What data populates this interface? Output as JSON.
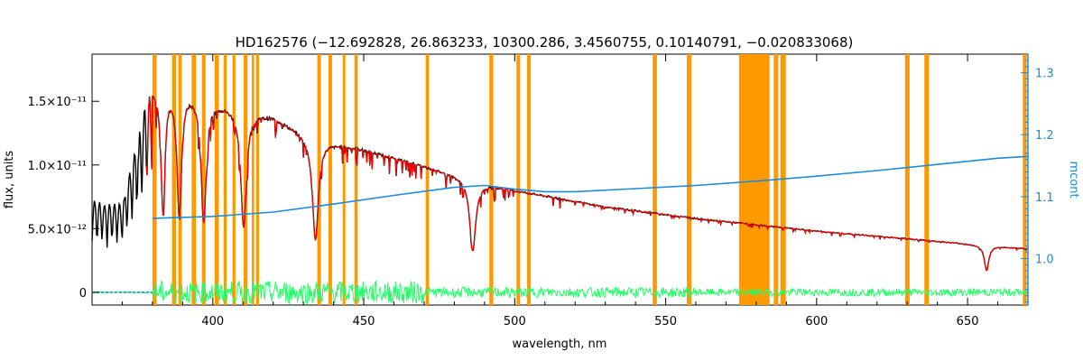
{
  "chart_data": {
    "type": "line",
    "title": "HD162576    (−12.692828, 26.863233, 10300.286, 3.4560755, 0.10140791, −0.020833068)",
    "xlabel": "wavelength, nm",
    "ylabel": "flux, units",
    "y2label": "mcont",
    "xlim": [
      360,
      670
    ],
    "ylim": [
      -1e-12,
      1.87e-11
    ],
    "y2lim": [
      0.925,
      1.33
    ],
    "xticks": [
      400,
      450,
      500,
      550,
      600,
      650
    ],
    "yticks": [
      {
        "value": 0,
        "label": "0"
      },
      {
        "value": 5e-12,
        "label": "5.0×10⁻¹²"
      },
      {
        "value": 1e-11,
        "label": "1.0×10⁻¹¹"
      },
      {
        "value": 1.5e-11,
        "label": "1.5×10⁻¹¹"
      }
    ],
    "y2ticks": [
      1.0,
      1.1,
      1.2,
      1.3
    ],
    "colors": {
      "observed": "#000000",
      "model": "#ff0000",
      "model_highlight": "#ffff00",
      "residual": "#22ff66",
      "mcont": "#1a8cdc",
      "masked": "#ff9900"
    },
    "masked_regions": [
      [
        380.0,
        381.4
      ],
      [
        386.5,
        387.8
      ],
      [
        388.6,
        389.7
      ],
      [
        393.0,
        394.4
      ],
      [
        396.4,
        397.6
      ],
      [
        400.6,
        402.0
      ],
      [
        403.6,
        404.6
      ],
      [
        406.5,
        407.5
      ],
      [
        410.2,
        411.5
      ],
      [
        412.9,
        413.7
      ],
      [
        414.3,
        415.3
      ],
      [
        434.6,
        435.8
      ],
      [
        438.3,
        439.5
      ],
      [
        443.0,
        443.9
      ],
      [
        446.9,
        448.0
      ],
      [
        470.5,
        471.6
      ],
      [
        491.6,
        492.9
      ],
      [
        500.6,
        501.8
      ],
      [
        504.1,
        505.3
      ],
      [
        545.7,
        547.1
      ],
      [
        557.0,
        558.6
      ],
      [
        574.3,
        584.4
      ],
      [
        585.8,
        587.3
      ],
      [
        588.0,
        589.8
      ],
      [
        629.3,
        630.8
      ],
      [
        635.7,
        637.2
      ],
      [
        668.3,
        669.6
      ]
    ],
    "balmer_lines": [
      {
        "center": 656.3,
        "depth": 0.53,
        "width": 0.9
      },
      {
        "center": 486.1,
        "depth": 0.63,
        "width": 1.2
      },
      {
        "center": 434.0,
        "depth": 0.66,
        "width": 1.2
      },
      {
        "center": 410.2,
        "depth": 0.64,
        "width": 1.1
      },
      {
        "center": 397.0,
        "depth": 0.63,
        "width": 1.0
      },
      {
        "center": 388.9,
        "depth": 0.62,
        "width": 0.9
      },
      {
        "center": 383.5,
        "depth": 0.6,
        "width": 0.8
      }
    ],
    "continuum": {
      "x": [
        360,
        364,
        370,
        375,
        378,
        380,
        385,
        390,
        395,
        400,
        410,
        420,
        430,
        440,
        450,
        470,
        490,
        500,
        530,
        560,
        600,
        640,
        670
      ],
      "y": [
        7.3e-12,
        6.9e-12,
        7e-12,
        1.2e-11,
        1.55e-11,
        1.6e-11,
        1.62e-11,
        1.6e-11,
        1.55e-11,
        1.5e-11,
        1.43e-11,
        1.38e-11,
        1.25e-11,
        1.17e-11,
        1.12e-11,
        9.9e-12,
        8.5e-12,
        8e-12,
        6.7e-12,
        5.8e-12,
        4.8e-12,
        4e-12,
        3.4e-12
      ]
    },
    "mcont_curve": {
      "x": [
        380,
        400,
        420,
        440,
        460,
        480,
        490,
        500,
        510,
        520,
        540,
        560,
        580,
        600,
        620,
        640,
        660,
        670
      ],
      "y": [
        1.065,
        1.068,
        1.075,
        1.088,
        1.102,
        1.115,
        1.118,
        1.112,
        1.108,
        1.108,
        1.113,
        1.118,
        1.125,
        1.133,
        1.142,
        1.152,
        1.162,
        1.165
      ]
    },
    "mcont_dashed_range": [
      360,
      380
    ]
  }
}
